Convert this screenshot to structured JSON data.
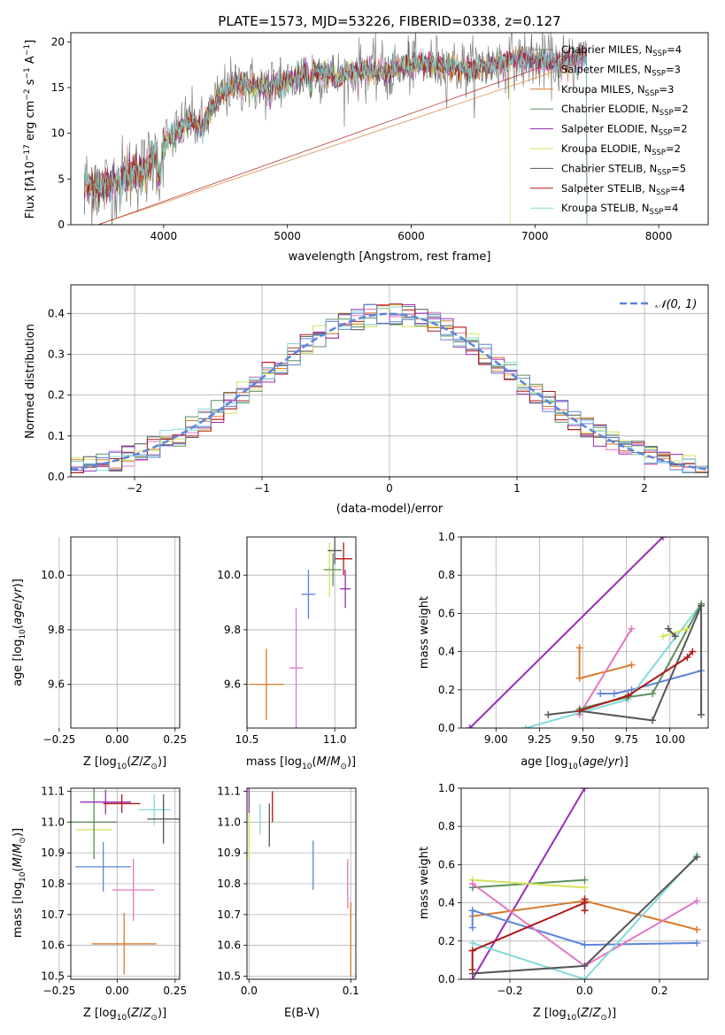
{
  "colors": {
    "Chabrier MILES": "#7f7f7f",
    "Salpeter MILES": "#e377c2",
    "Kroupa MILES": "#d97a2b",
    "Chabrier ELODIE": "#5d8f5d",
    "Salpeter ELODIE": "#9a2db3",
    "Kroupa ELODIE": "#d4e35a",
    "Chabrier STELIB": "#555555",
    "Salpeter STELIB": "#b01818",
    "Kroupa STELIB": "#85d9d9",
    "blue": "#5b85d9",
    "normal": "#5b85d9"
  },
  "chart_data": [
    {
      "id": "spectrum",
      "type": "line",
      "title": "PLATE=1573, MJD=53226, FIBERID=0338, z=0.127",
      "xlabel": "wavelength [Angstrom, rest frame]",
      "ylabel": "Flux [fλ10⁻¹⁷ erg cm⁻² s⁻¹ A⁻¹]",
      "xlim": [
        3250,
        8400
      ],
      "ylim": [
        0,
        21
      ],
      "xticks": [
        "4000",
        "5000",
        "6000",
        "7000",
        "8000"
      ],
      "yticks": [
        "0",
        "5",
        "10",
        "15",
        "20"
      ],
      "legend_position": "right",
      "series": [
        {
          "name": "Chabrier MILES, NSSP=4",
          "color": "#7f7f7f"
        },
        {
          "name": "Salpeter MILES, NSSP=3",
          "color": "#e377c2"
        },
        {
          "name": "Kroupa MILES, NSSP=3",
          "color": "#d97a2b"
        },
        {
          "name": "Chabrier ELODIE, NSSP=2",
          "color": "#5d8f5d"
        },
        {
          "name": "Salpeter ELODIE, NSSP=2",
          "color": "#9a2db3"
        },
        {
          "name": "Kroupa ELODIE, NSSP=2",
          "color": "#d4e35a"
        },
        {
          "name": "Chabrier STELIB, NSSP=5",
          "color": "#555555"
        },
        {
          "name": "Salpeter STELIB, NSSP=4",
          "color": "#b01818"
        },
        {
          "name": "Kroupa STELIB, NSSP=4",
          "color": "#85d9d9"
        }
      ],
      "continuum_x": [
        3360,
        3500,
        3700,
        3850,
        3950,
        4050,
        4200,
        4300,
        4450,
        4600,
        4800,
        4900,
        5000,
        5200,
        5400,
        5600,
        5800,
        6000,
        6200,
        6500,
        6800,
        7000,
        7200,
        7420
      ],
      "continuum_y": [
        4.5,
        4.0,
        5.5,
        6.0,
        8.0,
        9.5,
        11.5,
        10.5,
        14.0,
        15.5,
        15.0,
        15.5,
        15.5,
        17.0,
        16.0,
        17.0,
        16.5,
        17.5,
        17.5,
        17.0,
        18.0,
        18.0,
        17.5,
        18.5
      ]
    },
    {
      "id": "residuals",
      "type": "histogram",
      "xlabel": "(data-model)/error",
      "ylabel": "Normed distribution",
      "xlim": [
        -2.5,
        2.5
      ],
      "ylim": [
        0,
        0.47
      ],
      "xticks": [
        "−2",
        "−1",
        "0",
        "1",
        "2"
      ],
      "yticks": [
        "0.0",
        "0.1",
        "0.2",
        "0.3",
        "0.4"
      ],
      "bin_width": 0.1,
      "legend": "𝒩(0, 1)",
      "reference_curve": "standard normal, dashed"
    },
    {
      "id": "age-vs-Z",
      "type": "errorbar",
      "xlabel": "Z [log10(Z/Z⊙)]",
      "ylabel": "age  [log10(age/yr)]",
      "xlim": [
        -0.2,
        0.27
      ],
      "ylim": [
        9.44,
        10.14
      ],
      "xticks": [
        "−0.25",
        "0.00",
        "0.25"
      ],
      "yticks": [
        "9.6",
        "9.8",
        "10.0"
      ],
      "points": [
        {
          "x": 0.02,
          "y": 9.6,
          "xerr": 0.14,
          "yerr": 0.13,
          "color": "#d97a2b"
        },
        {
          "x": 0.04,
          "y": 9.66,
          "xerr": 0.13,
          "yerr": 0.22,
          "color": "#e377c2"
        },
        {
          "x": -0.06,
          "y": 9.93,
          "xerr": 0.12,
          "yerr": 0.1,
          "color": "#5b85d9"
        },
        {
          "x": -0.05,
          "y": 9.95,
          "xerr": 0.08,
          "yerr": 0.07,
          "color": "#9a2db3"
        },
        {
          "x": -0.1,
          "y": 10.02,
          "xerr": 0.1,
          "yerr": 0.12,
          "color": "#d4e35a"
        },
        {
          "x": -0.12,
          "y": 10.02,
          "xerr": 0.08,
          "yerr": 0.09,
          "color": "#5d8f5d"
        },
        {
          "x": 0.0,
          "y": 10.06,
          "xerr": 0.09,
          "yerr": 0.06,
          "color": "#b01818"
        },
        {
          "x": 0.16,
          "y": 10.09,
          "xerr": 0.08,
          "yerr": 0.05,
          "color": "#85d9d9"
        },
        {
          "x": 0.2,
          "y": 10.1,
          "xerr": 0.08,
          "yerr": 0.05,
          "color": "#555555"
        }
      ]
    },
    {
      "id": "age-vs-mass",
      "type": "errorbar",
      "xlabel": "mass [log10(M/M⊙)]",
      "xlim": [
        10.5,
        11.12
      ],
      "ylim": [
        9.44,
        10.14
      ],
      "xticks": [
        "10.5",
        "11.0"
      ],
      "yticks": [
        "9.6",
        "9.8",
        "10.0"
      ],
      "points": [
        {
          "x": 10.61,
          "y": 9.6,
          "xerr": 0.1,
          "yerr": 0.13,
          "color": "#d97a2b"
        },
        {
          "x": 10.78,
          "y": 9.66,
          "xerr": 0.04,
          "yerr": 0.22,
          "color": "#e377c2"
        },
        {
          "x": 10.85,
          "y": 9.93,
          "xerr": 0.04,
          "yerr": 0.09,
          "color": "#5b85d9"
        },
        {
          "x": 10.97,
          "y": 10.02,
          "xerr": 0.04,
          "yerr": 0.1,
          "color": "#d4e35a"
        },
        {
          "x": 11.06,
          "y": 9.95,
          "xerr": 0.03,
          "yerr": 0.07,
          "color": "#9a2db3"
        },
        {
          "x": 11.05,
          "y": 10.06,
          "xerr": 0.05,
          "yerr": 0.06,
          "color": "#b01818"
        },
        {
          "x": 11.0,
          "y": 10.09,
          "xerr": 0.04,
          "yerr": 0.05,
          "color": "#555555"
        },
        {
          "x": 10.99,
          "y": 10.02,
          "xerr": 0.05,
          "yerr": 0.06,
          "color": "#5d8f5d"
        }
      ]
    },
    {
      "id": "weight-vs-age",
      "type": "line",
      "xlabel": "age  [log10(age/yr)]",
      "ylabel": "mass weight",
      "xlim": [
        8.8,
        10.22
      ],
      "ylim": [
        0,
        1
      ],
      "xticks": [
        "9.00",
        "9.25",
        "9.50",
        "9.75",
        "10.00"
      ],
      "yticks": [
        "0.0",
        "0.2",
        "0.4",
        "0.6",
        "0.8",
        "1.0"
      ],
      "series": [
        {
          "color": "#9a2db3",
          "x": [
            8.85,
            9.96
          ],
          "y": [
            0.0,
            1.0
          ]
        },
        {
          "color": "#d97a2b",
          "x": [
            9.48,
            9.48,
            9.78
          ],
          "y": [
            0.42,
            0.26,
            0.33
          ]
        },
        {
          "color": "#e377c2",
          "x": [
            9.48,
            9.78
          ],
          "y": [
            0.07,
            0.52
          ]
        },
        {
          "color": "#5b85d9",
          "x": [
            9.6,
            9.68,
            9.78,
            10.18
          ],
          "y": [
            0.18,
            0.18,
            0.2,
            0.3
          ]
        },
        {
          "color": "#85d9d9",
          "x": [
            9.17,
            9.76,
            10.18
          ],
          "y": [
            0.0,
            0.15,
            0.65
          ]
        },
        {
          "color": "#5d8f5d",
          "x": [
            9.48,
            9.75,
            9.9,
            10.18
          ],
          "y": [
            0.1,
            0.16,
            0.18,
            0.65
          ]
        },
        {
          "color": "#555555",
          "x": [
            9.3,
            9.48,
            9.9,
            10.18,
            10.18
          ],
          "y": [
            0.07,
            0.09,
            0.04,
            0.64,
            0.07
          ]
        },
        {
          "color": "#b01818",
          "x": [
            9.48,
            9.76,
            10.1,
            10.13
          ],
          "y": [
            0.09,
            0.17,
            0.37,
            0.4
          ]
        },
        {
          "color": "#d4e35a",
          "x": [
            9.96,
            10.1
          ],
          "y": [
            0.48,
            0.52
          ]
        },
        {
          "color": "#555555",
          "x": [
            9.99,
            10.03
          ],
          "y": [
            0.52,
            0.48
          ]
        }
      ]
    },
    {
      "id": "mass-vs-Z",
      "type": "errorbar",
      "xlabel": "Z [log10(Z/Z⊙)]",
      "ylabel": "mass [log10(M/M⊙)]",
      "xlim": [
        -0.2,
        0.27
      ],
      "ylim": [
        10.49,
        11.11
      ],
      "xticks": [
        "−0.25",
        "0.00",
        "0.25"
      ],
      "yticks": [
        "10.5",
        "10.6",
        "10.7",
        "10.8",
        "10.9",
        "11.0",
        "11.1"
      ],
      "points": [
        {
          "x": 0.03,
          "y": 10.605,
          "xerr": 0.14,
          "yerr": 0.1,
          "color": "#d97a2b"
        },
        {
          "x": 0.07,
          "y": 10.78,
          "xerr": 0.09,
          "yerr": 0.1,
          "color": "#e377c2"
        },
        {
          "x": -0.06,
          "y": 10.855,
          "xerr": 0.12,
          "yerr": 0.08,
          "color": "#5b85d9"
        },
        {
          "x": -0.1,
          "y": 10.975,
          "xerr": 0.08,
          "yerr": 0.05,
          "color": "#d4e35a"
        },
        {
          "x": -0.1,
          "y": 11.0,
          "xerr": 0.1,
          "yerr": 0.12,
          "color": "#5d8f5d"
        },
        {
          "x": -0.05,
          "y": 11.065,
          "xerr": 0.11,
          "yerr": 0.04,
          "color": "#9a2db3"
        },
        {
          "x": 0.02,
          "y": 11.06,
          "xerr": 0.08,
          "yerr": 0.03,
          "color": "#b01818"
        },
        {
          "x": 0.16,
          "y": 11.04,
          "xerr": 0.07,
          "yerr": 0.05,
          "color": "#85d9d9"
        },
        {
          "x": 0.2,
          "y": 11.01,
          "xerr": 0.07,
          "yerr": 0.08,
          "color": "#555555"
        }
      ]
    },
    {
      "id": "mass-vs-EBV",
      "type": "errorbar",
      "xlabel": "E(B-V)",
      "xlim": [
        -0.002,
        0.105
      ],
      "ylim": [
        10.49,
        11.11
      ],
      "xticks": [
        "0.0",
        "0.1"
      ],
      "yticks": [
        "10.5",
        "10.6",
        "10.7",
        "10.8",
        "10.9",
        "11.0",
        "11.1"
      ],
      "points": [
        {
          "x": 0.0,
          "y": 10.98,
          "yerr": 0.1,
          "color": "#d4e35a"
        },
        {
          "x": 0.0,
          "y": 11.07,
          "yerr": 0.04,
          "color": "#9a2db3"
        },
        {
          "x": 0.011,
          "y": 11.01,
          "yerr": 0.05,
          "color": "#85d9d9"
        },
        {
          "x": 0.02,
          "y": 10.99,
          "yerr": 0.07,
          "color": "#555555"
        },
        {
          "x": 0.023,
          "y": 11.05,
          "yerr": 0.05,
          "color": "#b01818"
        },
        {
          "x": 0.063,
          "y": 10.86,
          "yerr": 0.08,
          "color": "#5b85d9"
        },
        {
          "x": 0.097,
          "y": 10.8,
          "yerr": 0.08,
          "color": "#e377c2"
        },
        {
          "x": 0.1,
          "y": 10.62,
          "yerr": 0.12,
          "color": "#d97a2b"
        }
      ]
    },
    {
      "id": "weight-vs-Z",
      "type": "line",
      "xlabel": "Z [log10(Z/Z⊙)]",
      "ylabel": "mass weight",
      "xlim": [
        -0.33,
        0.33
      ],
      "ylim": [
        0,
        1
      ],
      "xticks": [
        "−0.2",
        "0.0",
        "0.2"
      ],
      "yticks": [
        "0.0",
        "0.2",
        "0.4",
        "0.6",
        "0.8",
        "1.0"
      ],
      "series": [
        {
          "color": "#9a2db3",
          "x": [
            -0.3,
            0.0
          ],
          "y": [
            0.0,
            1.0
          ]
        },
        {
          "color": "#5d8f5d",
          "x": [
            -0.3,
            0.0
          ],
          "y": [
            0.48,
            0.52
          ]
        },
        {
          "color": "#d4e35a",
          "x": [
            -0.3,
            0.0
          ],
          "y": [
            0.52,
            0.48
          ]
        },
        {
          "color": "#d97a2b",
          "x": [
            -0.3,
            0.0,
            0.3
          ],
          "y": [
            0.33,
            0.41,
            0.26
          ]
        },
        {
          "color": "#5b85d9",
          "x": [
            -0.3,
            0.0,
            0.3
          ],
          "y": [
            0.36,
            0.18,
            0.19
          ]
        },
        {
          "color": "#5b85d9",
          "x": [
            -0.3,
            -0.3
          ],
          "y": [
            0.27,
            0.36
          ]
        },
        {
          "color": "#e377c2",
          "x": [
            -0.3,
            0.0,
            0.3
          ],
          "y": [
            0.5,
            0.07,
            0.41
          ]
        },
        {
          "color": "#85d9d9",
          "x": [
            -0.3,
            0.0,
            0.3
          ],
          "y": [
            0.19,
            0.0,
            0.65
          ]
        },
        {
          "color": "#555555",
          "x": [
            -0.3,
            0.0,
            0.3
          ],
          "y": [
            0.03,
            0.07,
            0.64
          ]
        },
        {
          "color": "#b01818",
          "x": [
            -0.3,
            0.0
          ],
          "y": [
            0.15,
            0.4
          ]
        },
        {
          "color": "#b01818",
          "x": [
            -0.3,
            -0.3
          ],
          "y": [
            0.05,
            0.15
          ]
        },
        {
          "color": "#b01818",
          "x": [
            0.0,
            0.0
          ],
          "y": [
            0.36,
            0.42
          ]
        }
      ]
    }
  ]
}
